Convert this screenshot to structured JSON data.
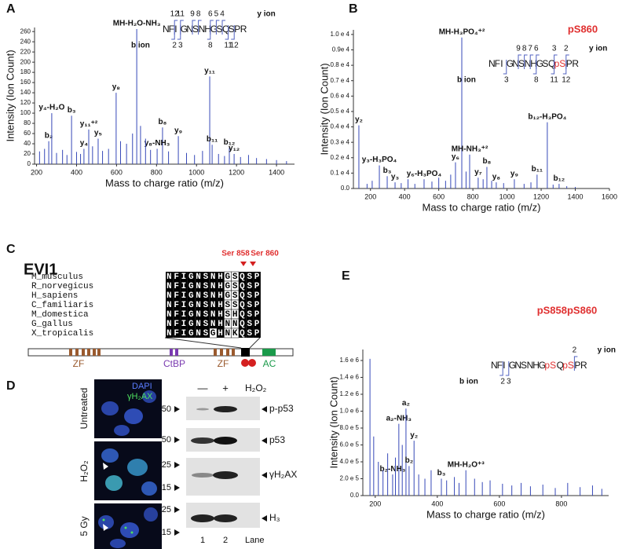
{
  "chart_data": [
    {
      "type": "spectrum",
      "panel": "A",
      "xlabel": "Mass to charge ratio (m/z)",
      "ylabel": "Intensity (Ion Count)",
      "color": "#3648b8",
      "xlim": [
        190,
        1490
      ],
      "ylim": [
        0,
        268
      ],
      "xticks": [
        200,
        400,
        600,
        800,
        1000,
        1200,
        1400
      ],
      "yticks": [
        0,
        20,
        40,
        60,
        80,
        100,
        120,
        140,
        160,
        180,
        200,
        220,
        240,
        260
      ],
      "x": [
        261,
        276,
        375,
        437,
        461,
        508,
        598,
        701,
        830,
        803,
        909,
        1066,
        1078,
        1164,
        1188,
        215,
        240,
        300,
        330,
        352,
        400,
        420,
        480,
        530,
        560,
        620,
        650,
        680,
        720,
        745,
        770,
        860,
        950,
        990,
        1030,
        1110,
        1140,
        1220,
        1260,
        1300,
        1350,
        1400,
        1450
      ],
      "values": [
        45,
        100,
        95,
        30,
        68,
        50,
        140,
        265,
        72,
        30,
        55,
        172,
        38,
        32,
        20,
        25,
        30,
        22,
        28,
        18,
        24,
        20,
        35,
        26,
        30,
        45,
        40,
        60,
        75,
        50,
        28,
        25,
        22,
        18,
        26,
        20,
        16,
        14,
        18,
        12,
        10,
        8,
        6
      ],
      "labels": [
        "b₂",
        "y₄-H₂O",
        "b₃",
        "y₄",
        "y₁₁⁺²",
        "y₅",
        "y₈",
        "MH-H₂O-NH₃",
        "b₈",
        "y₈-NH₃",
        "y₉",
        "y₁₁",
        "b₁₁",
        "b₁₂",
        "y₁₂",
        null,
        null,
        null,
        null,
        null,
        null,
        null,
        null,
        null,
        null,
        null,
        null,
        null,
        null,
        null,
        null,
        null,
        null,
        null,
        null,
        null,
        null,
        null,
        null,
        null,
        null,
        null,
        null
      ],
      "inset": {
        "sequence": [
          "N",
          "F",
          "I",
          "G",
          "N",
          "S",
          "N",
          "H",
          "G",
          "S",
          "Q",
          "S",
          "P",
          "R"
        ],
        "y_ion": "y ion",
        "y_ions": [
          "12",
          "11",
          "9",
          "8",
          "6",
          "5",
          "4"
        ],
        "b_ion": "b ion",
        "b_ions": [
          "2",
          "3",
          "8",
          "11",
          "12"
        ]
      }
    },
    {
      "type": "spectrum",
      "panel": "B",
      "xlabel": "Mass to charge ratio (m/z)",
      "ylabel": "Intensity (Ion Count)",
      "color": "#3648b8",
      "xlim": [
        100,
        1600
      ],
      "ylim": [
        0,
        10300
      ],
      "xticks": [
        200,
        400,
        600,
        800,
        1000,
        1200,
        1400,
        1600
      ],
      "yticks": [
        {
          "value": 0,
          "label": "0.0"
        },
        {
          "value": 1000,
          "label": "0.1 e 4"
        },
        {
          "value": 2000,
          "label": "0.2 e 4"
        },
        {
          "value": 3000,
          "label": "0.3 e 4"
        },
        {
          "value": 4000,
          "label": "0.4 e 4"
        },
        {
          "value": 5000,
          "label": "0.5 e 4"
        },
        {
          "value": 6000,
          "label": "0.6 e 4"
        },
        {
          "value": 7000,
          "label": "0.7 e 4"
        },
        {
          "value": 8000,
          "label": "0.8 e 4"
        },
        {
          "value": 9000,
          "label": "0.9e 4"
        },
        {
          "value": 10000,
          "label": "1.0 e 4"
        }
      ],
      "x": [
        132,
        252,
        298,
        344,
        514,
        698,
        735,
        781,
        831,
        882,
        937,
        1043,
        1176,
        1236,
        1305,
        180,
        210,
        380,
        420,
        460,
        560,
        600,
        640,
        670,
        760,
        860,
        910,
        980,
        1100,
        1140,
        1270,
        1350,
        1400
      ],
      "values": [
        4100,
        1500,
        800,
        400,
        600,
        1700,
        9800,
        2200,
        700,
        1400,
        400,
        600,
        900,
        4300,
        300,
        300,
        500,
        350,
        600,
        300,
        450,
        700,
        500,
        900,
        1100,
        600,
        500,
        350,
        300,
        400,
        250,
        150,
        100
      ],
      "labels": [
        "y₂",
        "y₃-H₃PO₄",
        "b₃",
        "y₃",
        "y₆-H₃PO₄",
        "y₆",
        "MH-H₃PO₄⁺²",
        "MH-NH₃⁺²",
        "y₇",
        "b₈",
        "y₈",
        "y₉",
        "b₁₁",
        "b₁₂-H₃PO₄",
        "b₁₂",
        null,
        null,
        null,
        null,
        null,
        null,
        null,
        null,
        null,
        null,
        null,
        null,
        null,
        null,
        null,
        null,
        null,
        null
      ],
      "site": "pS860",
      "inset": {
        "sequence": [
          "N",
          "F",
          "I",
          "G",
          "N",
          "S",
          "N",
          "H",
          "G",
          "S",
          "Q",
          "pS",
          "P",
          "R"
        ],
        "y_ion": "y ion",
        "y_ions": [
          "9",
          "8",
          "7",
          "6",
          "3",
          "2"
        ],
        "b_ion": "b ion",
        "b_ions": [
          "3",
          "8",
          "11",
          "12"
        ]
      }
    },
    {
      "type": "spectrum",
      "panel": "E",
      "xlabel": "Mass to charge ratio (m/z)",
      "ylabel": "Intensity (Ion Count)",
      "color": "#3648b8",
      "xlim": [
        160,
        952
      ],
      "ylim": [
        0,
        1730000
      ],
      "xticks": [
        200,
        400,
        600,
        800
      ],
      "yticks": [
        {
          "value": 0,
          "label": "0.0"
        },
        {
          "value": 200000,
          "label": "2.0 e 5"
        },
        {
          "value": 400000,
          "label": "4.0 e 5"
        },
        {
          "value": 600000,
          "label": "6.0 e 5"
        },
        {
          "value": 800000,
          "label": "8.0 e 5"
        },
        {
          "value": 1000000,
          "label": "1.0 e 6"
        },
        {
          "value": 1200000,
          "label": "1.2 e 6"
        },
        {
          "value": 1400000,
          "label": "1.4 e 6"
        },
        {
          "value": 1600000,
          "label": "1.6 e 6"
        }
      ],
      "x": [
        276,
        299,
        325,
        256,
        309,
        413,
        492,
        183,
        195,
        210,
        225,
        240,
        265,
        287,
        340,
        360,
        380,
        430,
        455,
        470,
        520,
        545,
        570,
        610,
        640,
        670,
        700,
        740,
        780,
        820,
        860,
        900,
        930
      ],
      "values": [
        850000,
        1030000,
        650000,
        250000,
        350000,
        200000,
        300000,
        1620000,
        700000,
        400000,
        300000,
        500000,
        450000,
        600000,
        250000,
        200000,
        300000,
        180000,
        220000,
        150000,
        200000,
        160000,
        180000,
        140000,
        120000,
        150000,
        110000,
        130000,
        90000,
        150000,
        100000,
        120000,
        80000
      ],
      "labels": [
        "a₂-NH₃",
        "a₂",
        "y₂",
        "b₂-NH₃",
        "b₂",
        "b₃",
        "MH-H₂O⁺³",
        null,
        null,
        null,
        null,
        null,
        null,
        null,
        null,
        null,
        null,
        null,
        null,
        null,
        null,
        null,
        null,
        null,
        null,
        null,
        null,
        null,
        null,
        null,
        null,
        null,
        null
      ],
      "site": "pS858pS860",
      "inset": {
        "sequence": [
          "N",
          "F",
          "I",
          "G",
          "N",
          "S",
          "N",
          "H",
          "G",
          "pS",
          "Q",
          "pS",
          "P",
          "R"
        ],
        "y_ion": "y ion",
        "y_ions": [
          "2"
        ],
        "b_ion": "b ion",
        "b_ions": [
          "2",
          "3"
        ]
      }
    }
  ],
  "panel_c": {
    "label": "C",
    "protein": "EVI1",
    "sites": [
      "Ser 858",
      "Ser 860"
    ],
    "species": [
      "M_musculus",
      "R_norvegicus",
      "H_sapiens",
      "C_familiaris",
      "M_domestica",
      "G_gallus",
      "X_tropicalis"
    ],
    "sequences": [
      "NFIGNSNHGSQSP",
      "NFIGNSNHGSQSP",
      "NFIGNSNHGSQSP",
      "NFIGNSNHSSQSP",
      "NFIGNSNHSHQSP",
      "NFIGNSNHNNQSP",
      "NFIGNSGHNKQSP"
    ],
    "domains": [
      "ZF",
      "CtBP",
      "ZF",
      "AC"
    ]
  },
  "panel_d": {
    "label": "D",
    "stains": [
      "DAPI",
      "γH₂AX"
    ],
    "conditions": [
      "Untreated",
      "H₂O₂",
      "5 Gy"
    ],
    "lane_header": [
      "—",
      "+"
    ],
    "treatment": "H₂O₂",
    "markers": [
      "50",
      "50",
      "25",
      "15",
      "25",
      "15"
    ],
    "bands": [
      "p-p53",
      "p53",
      "γH₂AX",
      "H₃"
    ],
    "lanes": [
      "1",
      "2"
    ],
    "lane_label": "Lane"
  }
}
